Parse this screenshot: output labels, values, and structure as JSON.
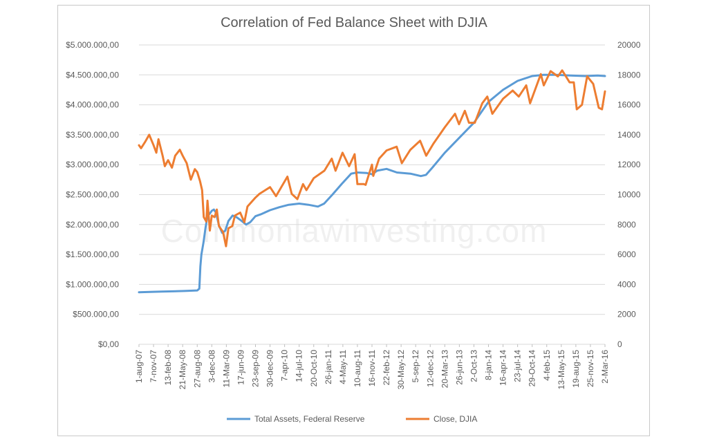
{
  "watermark": "Commonlawinvesting.com",
  "chart_data": {
    "type": "line",
    "title": "Correlation of Fed Balance Sheet with DJIA",
    "xlabel": "",
    "ylabel": "",
    "y_left_lim": [
      0,
      5000000
    ],
    "y_right_lim": [
      0,
      20000
    ],
    "y_left_ticks": [
      0,
      500000,
      1000000,
      1500000,
      2000000,
      2500000,
      3000000,
      3500000,
      4000000,
      4500000,
      5000000
    ],
    "y_left_tick_labels": [
      "$0,00",
      "$500.000,00",
      "$1.000.000,00",
      "$1.500.000,00",
      "$2.000.000,00",
      "$2.500.000,00",
      "$3.000.000,00",
      "$3.500.000,00",
      "$4.000.000,00",
      "$4.500.000,00",
      "$5.000.000,00"
    ],
    "y_right_ticks": [
      0,
      2000,
      4000,
      6000,
      8000,
      10000,
      12000,
      14000,
      16000,
      18000,
      20000
    ],
    "y_right_tick_labels": [
      "0",
      "2000",
      "4000",
      "6000",
      "8000",
      "10000",
      "12000",
      "14000",
      "16000",
      "18000",
      "20000"
    ],
    "x_range": [
      "2007-08-01",
      "2016-03-02"
    ],
    "x_ticks": [
      "2007-08-01",
      "2007-11-07",
      "2008-02-13",
      "2008-05-21",
      "2008-08-27",
      "2008-12-03",
      "2009-03-11",
      "2009-06-17",
      "2009-09-23",
      "2009-12-30",
      "2010-04-07",
      "2010-07-14",
      "2010-10-20",
      "2011-01-26",
      "2011-05-04",
      "2011-08-10",
      "2011-11-16",
      "2012-02-22",
      "2012-05-30",
      "2012-09-05",
      "2012-12-12",
      "2013-03-20",
      "2013-06-26",
      "2013-10-02",
      "2014-01-08",
      "2014-04-16",
      "2014-07-23",
      "2014-10-29",
      "2015-02-04",
      "2015-05-13",
      "2015-08-19",
      "2015-11-25",
      "2016-03-02"
    ],
    "x_tick_labels": [
      "1-aug-07",
      "7-nov-07",
      "13-feb-08",
      "21-May-08",
      "27-aug-08",
      "3-dec-08",
      "11-Mar-09",
      "17-jun-09",
      "23-sep-09",
      "30-dec-09",
      "7-apr-10",
      "14-jul-10",
      "20-Oct-10",
      "26-jan-11",
      "4-May-11",
      "10-aug-11",
      "16-nov-11",
      "22-feb-12",
      "30-May-12",
      "5-sep-12",
      "12-dec-12",
      "20-Mar-13",
      "26-jun-13",
      "2-Oct-13",
      "8-jan-14",
      "16-apr-14",
      "23-jul-14",
      "29-Oct-14",
      "4-feb-15",
      "13-May-15",
      "19-aug-15",
      "25-nov-15",
      "2-Mar-16"
    ],
    "grid": true,
    "legend_position": "bottom",
    "series": [
      {
        "name": "Total Assets, Federal Reserve",
        "axis": "left",
        "color": "#5b9bd5",
        "points": [
          [
            "2007-08-01",
            870000
          ],
          [
            "2007-10-15",
            875000
          ],
          [
            "2008-01-01",
            880000
          ],
          [
            "2008-03-15",
            885000
          ],
          [
            "2008-06-01",
            890000
          ],
          [
            "2008-08-27",
            900000
          ],
          [
            "2008-09-10",
            930000
          ],
          [
            "2008-09-17",
            1300000
          ],
          [
            "2008-09-24",
            1500000
          ],
          [
            "2008-10-08",
            1700000
          ],
          [
            "2008-10-22",
            1950000
          ],
          [
            "2008-11-05",
            2150000
          ],
          [
            "2008-11-19",
            2180000
          ],
          [
            "2008-12-03",
            2230000
          ],
          [
            "2008-12-17",
            2250000
          ],
          [
            "2008-12-31",
            2200000
          ],
          [
            "2009-01-21",
            1980000
          ],
          [
            "2009-02-11",
            1860000
          ],
          [
            "2009-03-04",
            1900000
          ],
          [
            "2009-03-25",
            2060000
          ],
          [
            "2009-04-22",
            2150000
          ],
          [
            "2009-05-20",
            2120000
          ],
          [
            "2009-06-17",
            2070000
          ],
          [
            "2009-07-22",
            2000000
          ],
          [
            "2009-08-19",
            2040000
          ],
          [
            "2009-09-23",
            2140000
          ],
          [
            "2009-10-28",
            2170000
          ],
          [
            "2009-12-30",
            2240000
          ],
          [
            "2010-03-03",
            2290000
          ],
          [
            "2010-05-05",
            2330000
          ],
          [
            "2010-07-14",
            2350000
          ],
          [
            "2010-09-15",
            2330000
          ],
          [
            "2010-11-17",
            2300000
          ],
          [
            "2010-12-29",
            2350000
          ],
          [
            "2011-02-23",
            2500000
          ],
          [
            "2011-04-27",
            2680000
          ],
          [
            "2011-06-29",
            2850000
          ],
          [
            "2011-08-10",
            2870000
          ],
          [
            "2011-10-12",
            2860000
          ],
          [
            "2011-11-16",
            2840000
          ],
          [
            "2011-12-21",
            2900000
          ],
          [
            "2012-02-22",
            2930000
          ],
          [
            "2012-05-02",
            2870000
          ],
          [
            "2012-08-01",
            2850000
          ],
          [
            "2012-10-10",
            2810000
          ],
          [
            "2012-11-14",
            2830000
          ],
          [
            "2012-12-26",
            2950000
          ],
          [
            "2013-03-20",
            3200000
          ],
          [
            "2013-06-26",
            3450000
          ],
          [
            "2013-10-02",
            3700000
          ],
          [
            "2014-01-08",
            4050000
          ],
          [
            "2014-04-16",
            4250000
          ],
          [
            "2014-07-23",
            4400000
          ],
          [
            "2014-10-29",
            4480000
          ],
          [
            "2015-01-14",
            4500000
          ],
          [
            "2015-04-08",
            4500000
          ],
          [
            "2015-07-15",
            4490000
          ],
          [
            "2015-10-21",
            4480000
          ],
          [
            "2016-01-13",
            4490000
          ],
          [
            "2016-03-02",
            4480000
          ]
        ]
      },
      {
        "name": "Close, DJIA",
        "axis": "right",
        "color": "#ed7d31",
        "points": [
          [
            "2007-08-01",
            13300
          ],
          [
            "2007-08-15",
            13100
          ],
          [
            "2007-09-10",
            13500
          ],
          [
            "2007-10-09",
            14000
          ],
          [
            "2007-11-07",
            13300
          ],
          [
            "2007-11-26",
            12800
          ],
          [
            "2007-12-10",
            13700
          ],
          [
            "2008-01-07",
            12600
          ],
          [
            "2008-01-22",
            11900
          ],
          [
            "2008-02-13",
            12300
          ],
          [
            "2008-03-10",
            11800
          ],
          [
            "2008-04-01",
            12600
          ],
          [
            "2008-05-02",
            13000
          ],
          [
            "2008-05-21",
            12600
          ],
          [
            "2008-06-17",
            12100
          ],
          [
            "2008-07-15",
            11000
          ],
          [
            "2008-08-11",
            11700
          ],
          [
            "2008-08-27",
            11500
          ],
          [
            "2008-09-15",
            10900
          ],
          [
            "2008-09-29",
            10300
          ],
          [
            "2008-10-10",
            8500
          ],
          [
            "2008-10-27",
            8200
          ],
          [
            "2008-11-04",
            9600
          ],
          [
            "2008-11-20",
            7600
          ],
          [
            "2008-12-03",
            8600
          ],
          [
            "2008-12-22",
            8500
          ],
          [
            "2009-01-06",
            9000
          ],
          [
            "2009-01-20",
            7900
          ],
          [
            "2009-02-17",
            7500
          ],
          [
            "2009-03-09",
            6550
          ],
          [
            "2009-03-25",
            7750
          ],
          [
            "2009-04-20",
            7900
          ],
          [
            "2009-05-08",
            8600
          ],
          [
            "2009-06-12",
            8800
          ],
          [
            "2009-07-10",
            8150
          ],
          [
            "2009-07-31",
            9200
          ],
          [
            "2009-09-23",
            9800
          ],
          [
            "2009-10-20",
            10050
          ],
          [
            "2009-12-30",
            10500
          ],
          [
            "2010-02-08",
            9900
          ],
          [
            "2010-04-26",
            11200
          ],
          [
            "2010-05-25",
            10050
          ],
          [
            "2010-07-02",
            9700
          ],
          [
            "2010-08-09",
            10700
          ],
          [
            "2010-09-01",
            10300
          ],
          [
            "2010-10-20",
            11100
          ],
          [
            "2010-12-31",
            11600
          ],
          [
            "2011-02-18",
            12400
          ],
          [
            "2011-03-16",
            11600
          ],
          [
            "2011-05-02",
            12800
          ],
          [
            "2011-06-15",
            11900
          ],
          [
            "2011-07-22",
            12700
          ],
          [
            "2011-08-10",
            10700
          ],
          [
            "2011-09-22",
            10700
          ],
          [
            "2011-10-04",
            10650
          ],
          [
            "2011-11-16",
            12000
          ],
          [
            "2011-11-25",
            11250
          ],
          [
            "2012-01-03",
            12400
          ],
          [
            "2012-02-22",
            12950
          ],
          [
            "2012-04-30",
            13200
          ],
          [
            "2012-06-04",
            12100
          ],
          [
            "2012-07-31",
            13000
          ],
          [
            "2012-10-05",
            13600
          ],
          [
            "2012-11-15",
            12600
          ],
          [
            "2013-01-02",
            13400
          ],
          [
            "2013-03-20",
            14500
          ],
          [
            "2013-05-28",
            15400
          ],
          [
            "2013-06-24",
            14700
          ],
          [
            "2013-08-02",
            15600
          ],
          [
            "2013-08-30",
            14800
          ],
          [
            "2013-10-08",
            14800
          ],
          [
            "2013-11-27",
            16100
          ],
          [
            "2013-12-31",
            16550
          ],
          [
            "2014-02-03",
            15400
          ],
          [
            "2014-04-16",
            16400
          ],
          [
            "2014-06-20",
            16950
          ],
          [
            "2014-07-31",
            16550
          ],
          [
            "2014-09-19",
            17300
          ],
          [
            "2014-10-15",
            16100
          ],
          [
            "2014-12-26",
            18050
          ],
          [
            "2015-01-15",
            17300
          ],
          [
            "2015-03-02",
            18250
          ],
          [
            "2015-04-20",
            17900
          ],
          [
            "2015-05-19",
            18300
          ],
          [
            "2015-07-08",
            17500
          ],
          [
            "2015-08-05",
            17500
          ],
          [
            "2015-08-25",
            15700
          ],
          [
            "2015-09-29",
            16000
          ],
          [
            "2015-11-03",
            17900
          ],
          [
            "2015-12-14",
            17400
          ],
          [
            "2016-01-20",
            15800
          ],
          [
            "2016-02-11",
            15700
          ],
          [
            "2016-03-02",
            16900
          ]
        ]
      }
    ]
  }
}
